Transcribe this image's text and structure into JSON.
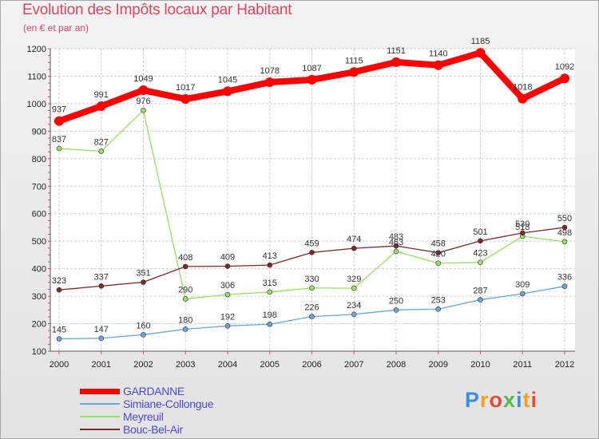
{
  "header": {
    "title": "Evolution des Impôts locaux par Habitant",
    "subtitle": "(en € et par an)"
  },
  "chart_data": {
    "type": "line",
    "title": "Evolution des Impôts locaux par Habitant",
    "subtitle": "(en € et par an)",
    "xlabel": "",
    "ylabel": "",
    "ylim": [
      100,
      1200
    ],
    "yticks": [
      100,
      200,
      300,
      400,
      500,
      600,
      700,
      800,
      900,
      1000,
      1100,
      1200
    ],
    "categories": [
      "2000",
      "2001",
      "2002",
      "2003",
      "2004",
      "2005",
      "2006",
      "2007",
      "2008",
      "2009",
      "2010",
      "2011",
      "2012"
    ],
    "series": [
      {
        "name": "GARDANNE",
        "color": "#ff0000",
        "values": [
          937,
          991,
          1049,
          1017,
          1045,
          1078,
          1087,
          1115,
          1151,
          1140,
          1185,
          1018,
          1092
        ]
      },
      {
        "name": "Simiane-Collongue",
        "color": "#6aa6d8",
        "values": [
          145,
          147,
          160,
          180,
          192,
          198,
          226,
          234,
          250,
          253,
          287,
          309,
          336
        ]
      },
      {
        "name": "Meyreuil",
        "color": "#99e066",
        "values": [
          837,
          827,
          976,
          290,
          306,
          315,
          330,
          329,
          463,
          420,
          423,
          518,
          498
        ]
      },
      {
        "name": "Bouc-Bel-Air",
        "color": "#7a2a2a",
        "values": [
          323,
          337,
          351,
          408,
          409,
          413,
          459,
          474,
          483,
          458,
          501,
          530,
          550
        ]
      }
    ],
    "data_labels": [
      [
        "937",
        "991",
        "1049",
        "1017",
        "1045",
        "1078",
        "1087",
        "1115",
        "1151",
        "1140",
        "1185",
        "1018",
        "1092"
      ],
      [
        "145",
        "147",
        "160",
        "180",
        "192",
        "198",
        "226",
        "234",
        "250",
        "253",
        "287",
        "309",
        "336"
      ],
      [
        "837",
        "827",
        "976",
        "290",
        "306",
        "315",
        "330",
        "329",
        "463",
        "420",
        "423",
        "518",
        "498"
      ],
      [
        "323",
        "337",
        "351",
        "408",
        "409",
        "413",
        "459",
        "474",
        "483",
        "458",
        "501",
        "530",
        "550"
      ]
    ],
    "legend": "bottom-left"
  },
  "logo": {
    "letters": [
      "P",
      "r",
      "o",
      "x",
      "i",
      "t",
      "i"
    ],
    "colors": [
      "#3d8ee0",
      "#f2a21e",
      "#e84a3a",
      "#58b947",
      "#3d8ee0",
      "#f2a21e",
      "#e84a3a"
    ]
  }
}
